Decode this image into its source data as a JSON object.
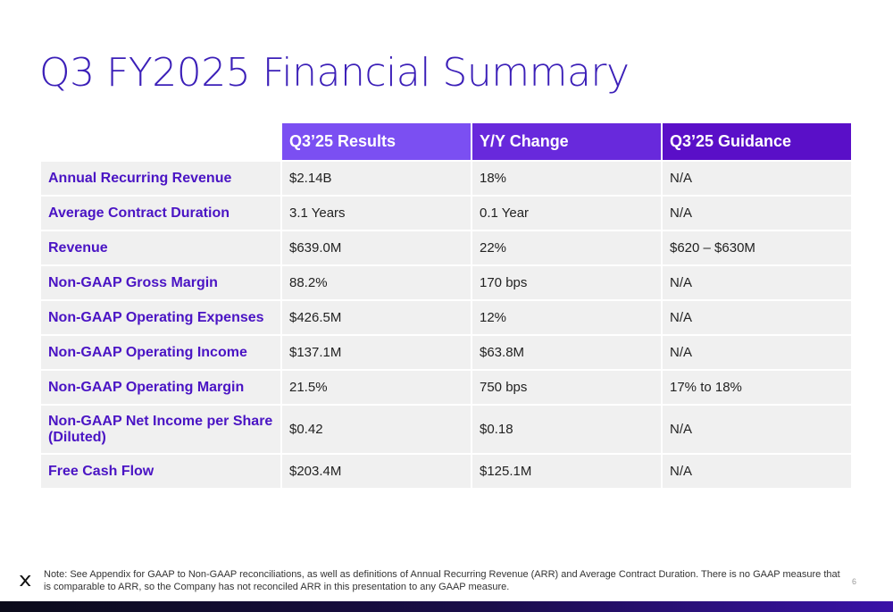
{
  "title": "Q3 FY2025 Financial Summary",
  "table": {
    "headers": [
      "",
      "Q3’25 Results",
      "Y/Y Change",
      "Q3’25 Guidance"
    ],
    "rows": [
      {
        "metric": "Annual Recurring Revenue",
        "results": "$2.14B",
        "change": "18%",
        "guidance": "N/A"
      },
      {
        "metric": "Average Contract Duration",
        "results": "3.1 Years",
        "change": "0.1 Year",
        "guidance": "N/A"
      },
      {
        "metric": "Revenue",
        "results": "$639.0M",
        "change": "22%",
        "guidance": "$620 – $630M"
      },
      {
        "metric": "Non-GAAP Gross Margin",
        "results": "88.2%",
        "change": "170 bps",
        "guidance": "N/A"
      },
      {
        "metric": "Non-GAAP Operating Expenses",
        "results": "$426.5M",
        "change": "12%",
        "guidance": "N/A"
      },
      {
        "metric": "Non-GAAP Operating Income",
        "results": "$137.1M",
        "change": "$63.8M",
        "guidance": "N/A"
      },
      {
        "metric": "Non-GAAP Operating Margin",
        "results": "21.5%",
        "change": "750 bps",
        "guidance": "17% to 18%"
      },
      {
        "metric": "Non-GAAP Net Income per Share (Diluted)",
        "results": "$0.42",
        "change": "$0.18",
        "guidance": "N/A"
      },
      {
        "metric": "Free Cash Flow",
        "results": "$203.4M",
        "change": "$125.1M",
        "guidance": "N/A"
      }
    ]
  },
  "footer": {
    "note": "Note: See Appendix for GAAP to Non-GAAP reconciliations, as well as definitions of Annual Recurring Revenue (ARR) and Average Contract Duration. There is no GAAP measure that is comparable to ARR, so the Company has not reconciled ARR in this presentation to any GAAP measure.",
    "page_number": "6",
    "logo_icon": "x-logo-icon"
  },
  "colors": {
    "title": "#3b1fb8",
    "metric_text": "#4a14c4",
    "header_1": "#7b4ff2",
    "header_2": "#6829dc",
    "header_3": "#5a0fc8",
    "row_bg": "#f0f0f0"
  }
}
